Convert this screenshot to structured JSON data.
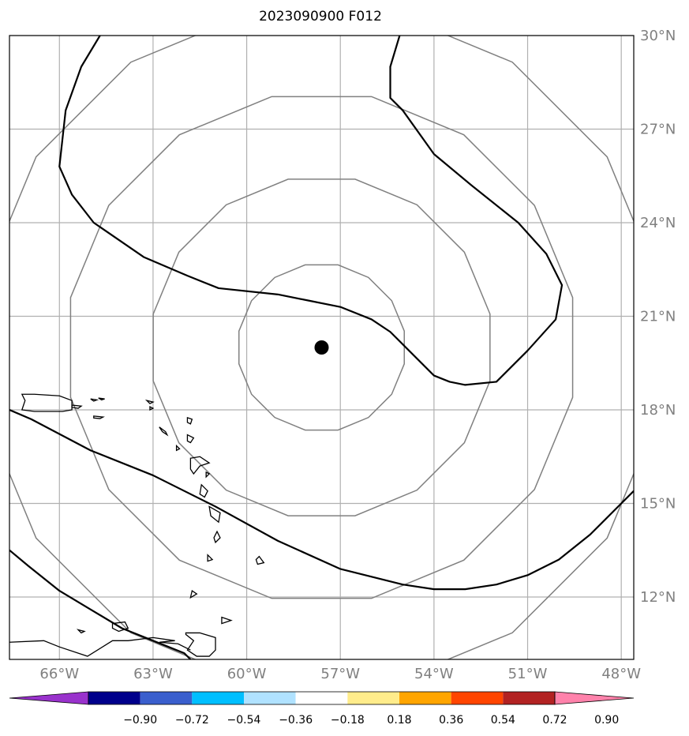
{
  "title": "2023090900 F012",
  "map": {
    "extent": {
      "lon_min": -67.6,
      "lon_max": -47.6,
      "lat_min": 10.0,
      "lat_max": 30.0
    },
    "lon_ticks": [
      {
        "lon": -66,
        "label": "66°W"
      },
      {
        "lon": -63,
        "label": "63°W"
      },
      {
        "lon": -60,
        "label": "60°W"
      },
      {
        "lon": -57,
        "label": "57°W"
      },
      {
        "lon": -54,
        "label": "54°W"
      },
      {
        "lon": -51,
        "label": "51°W"
      },
      {
        "lon": -48,
        "label": "48°W"
      }
    ],
    "lat_ticks": [
      {
        "lat": 30,
        "label": "30°N"
      },
      {
        "lat": 27,
        "label": "27°N"
      },
      {
        "lat": 24,
        "label": "24°N"
      },
      {
        "lat": 21,
        "label": "21°N"
      },
      {
        "lat": 18,
        "label": "18°N"
      },
      {
        "lat": 15,
        "label": "15°N"
      },
      {
        "lat": 12,
        "label": "12°N"
      }
    ],
    "gridlines": true,
    "storm_center": {
      "lon": -57.6,
      "lat": 20.0
    },
    "range_rings_deg": [
      2.7,
      5.5,
      8.2,
      11.0
    ],
    "contours": [
      {
        "name": "contour-north",
        "points": [
          [
            -64.7,
            30
          ],
          [
            -65.3,
            29
          ],
          [
            -65.8,
            27.6
          ],
          [
            -66.0,
            25.8
          ],
          [
            -65.6,
            24.9
          ],
          [
            -64.9,
            24.0
          ],
          [
            -63.3,
            22.9
          ],
          [
            -61.9,
            22.3
          ],
          [
            -60.9,
            21.9
          ],
          [
            -59.0,
            21.7
          ],
          [
            -58.0,
            21.5
          ],
          [
            -57.0,
            21.3
          ],
          [
            -56.0,
            20.9
          ],
          [
            -55.4,
            20.5
          ],
          [
            -55.0,
            20.1
          ],
          [
            -54.0,
            19.1
          ],
          [
            -53.5,
            18.9
          ],
          [
            -53.0,
            18.8
          ],
          [
            -52.0,
            18.9
          ],
          [
            -51.0,
            19.9
          ],
          [
            -50.1,
            20.9
          ],
          [
            -49.9,
            22.0
          ],
          [
            -50.4,
            23.0
          ],
          [
            -51.3,
            24.0
          ],
          [
            -52.8,
            25.2
          ],
          [
            -54.0,
            26.2
          ],
          [
            -55.0,
            27.6
          ],
          [
            -55.4,
            28.0
          ],
          [
            -55.4,
            29.0
          ],
          [
            -55.1,
            30.0
          ]
        ]
      },
      {
        "name": "contour-south-1",
        "points": [
          [
            -67.6,
            18.0
          ],
          [
            -66.9,
            17.7
          ],
          [
            -65.0,
            16.7
          ],
          [
            -63.0,
            15.9
          ],
          [
            -61.0,
            14.9
          ],
          [
            -59.0,
            13.8
          ],
          [
            -57.0,
            12.9
          ],
          [
            -55.0,
            12.4
          ],
          [
            -54.0,
            12.25
          ],
          [
            -53.0,
            12.25
          ],
          [
            -52.0,
            12.4
          ],
          [
            -51.0,
            12.7
          ],
          [
            -50.0,
            13.2
          ],
          [
            -49.0,
            14.0
          ],
          [
            -48.0,
            15.0
          ],
          [
            -47.6,
            15.4
          ]
        ]
      },
      {
        "name": "contour-south-2",
        "points": [
          [
            -67.6,
            13.5
          ],
          [
            -67.0,
            13.0
          ],
          [
            -66.0,
            12.2
          ],
          [
            -65.0,
            11.6
          ],
          [
            -64.0,
            11.0
          ],
          [
            -63.0,
            10.6
          ],
          [
            -62.0,
            10.2
          ],
          [
            -61.8,
            10.0
          ]
        ]
      }
    ],
    "islands": [
      {
        "name": "puerto-rico",
        "points": [
          [
            -67.2,
            18.5
          ],
          [
            -67.1,
            18.3
          ],
          [
            -67.2,
            18.0
          ],
          [
            -66.8,
            17.95
          ],
          [
            -65.9,
            17.95
          ],
          [
            -65.6,
            18.0
          ],
          [
            -65.6,
            18.3
          ],
          [
            -66.0,
            18.45
          ],
          [
            -66.8,
            18.5
          ]
        ]
      },
      {
        "name": "vieques",
        "points": [
          [
            -65.6,
            18.15
          ],
          [
            -65.3,
            18.12
          ],
          [
            -65.4,
            18.05
          ],
          [
            -65.6,
            18.08
          ]
        ]
      },
      {
        "name": "virgin-islands-1",
        "points": [
          [
            -65.0,
            18.35
          ],
          [
            -64.8,
            18.32
          ],
          [
            -64.9,
            18.28
          ]
        ]
      },
      {
        "name": "virgin-islands-2",
        "points": [
          [
            -64.75,
            18.38
          ],
          [
            -64.55,
            18.35
          ],
          [
            -64.65,
            18.32
          ]
        ]
      },
      {
        "name": "st-croix",
        "points": [
          [
            -64.9,
            17.8
          ],
          [
            -64.6,
            17.77
          ],
          [
            -64.7,
            17.72
          ],
          [
            -64.9,
            17.74
          ]
        ]
      },
      {
        "name": "anguilla",
        "points": [
          [
            -63.2,
            18.3
          ],
          [
            -63.0,
            18.25
          ],
          [
            -63.1,
            18.2
          ]
        ]
      },
      {
        "name": "st-martin",
        "points": [
          [
            -63.1,
            18.1
          ],
          [
            -63.0,
            18.05
          ],
          [
            -63.1,
            18.0
          ]
        ]
      },
      {
        "name": "barbuda",
        "points": [
          [
            -61.9,
            17.75
          ],
          [
            -61.75,
            17.7
          ],
          [
            -61.8,
            17.55
          ],
          [
            -61.9,
            17.6
          ]
        ]
      },
      {
        "name": "antigua",
        "points": [
          [
            -61.9,
            17.2
          ],
          [
            -61.7,
            17.1
          ],
          [
            -61.8,
            16.95
          ],
          [
            -61.9,
            17.0
          ]
        ]
      },
      {
        "name": "st-kitts",
        "points": [
          [
            -62.8,
            17.45
          ],
          [
            -62.6,
            17.3
          ],
          [
            -62.55,
            17.2
          ],
          [
            -62.7,
            17.3
          ]
        ]
      },
      {
        "name": "montserrat",
        "points": [
          [
            -62.25,
            16.85
          ],
          [
            -62.15,
            16.75
          ],
          [
            -62.25,
            16.7
          ]
        ]
      },
      {
        "name": "guadeloupe",
        "points": [
          [
            -61.8,
            16.45
          ],
          [
            -61.5,
            16.5
          ],
          [
            -61.2,
            16.3
          ],
          [
            -61.5,
            16.2
          ],
          [
            -61.7,
            15.95
          ],
          [
            -61.8,
            16.1
          ]
        ]
      },
      {
        "name": "marie-galante",
        "points": [
          [
            -61.3,
            16.0
          ],
          [
            -61.2,
            15.95
          ],
          [
            -61.3,
            15.85
          ]
        ]
      },
      {
        "name": "dominica",
        "points": [
          [
            -61.45,
            15.6
          ],
          [
            -61.25,
            15.4
          ],
          [
            -61.35,
            15.2
          ],
          [
            -61.5,
            15.3
          ]
        ]
      },
      {
        "name": "martinique",
        "points": [
          [
            -61.2,
            14.9
          ],
          [
            -60.85,
            14.7
          ],
          [
            -60.9,
            14.4
          ],
          [
            -61.15,
            14.6
          ]
        ]
      },
      {
        "name": "st-lucia",
        "points": [
          [
            -60.95,
            14.1
          ],
          [
            -60.85,
            13.9
          ],
          [
            -61.0,
            13.75
          ],
          [
            -61.05,
            13.9
          ]
        ]
      },
      {
        "name": "st-vincent",
        "points": [
          [
            -61.25,
            13.35
          ],
          [
            -61.1,
            13.2
          ],
          [
            -61.25,
            13.15
          ]
        ]
      },
      {
        "name": "barbados",
        "points": [
          [
            -59.6,
            13.3
          ],
          [
            -59.45,
            13.1
          ],
          [
            -59.65,
            13.05
          ],
          [
            -59.7,
            13.2
          ]
        ]
      },
      {
        "name": "grenada",
        "points": [
          [
            -61.75,
            12.2
          ],
          [
            -61.6,
            12.1
          ],
          [
            -61.8,
            11.98
          ]
        ]
      },
      {
        "name": "tobago",
        "points": [
          [
            -60.8,
            11.35
          ],
          [
            -60.5,
            11.25
          ],
          [
            -60.8,
            11.15
          ]
        ]
      },
      {
        "name": "trinidad",
        "points": [
          [
            -61.95,
            10.85
          ],
          [
            -61.5,
            10.85
          ],
          [
            -61.0,
            10.7
          ],
          [
            -61.0,
            10.3
          ],
          [
            -61.2,
            10.1
          ],
          [
            -61.6,
            10.1
          ],
          [
            -61.9,
            10.3
          ],
          [
            -61.7,
            10.6
          ],
          [
            -61.95,
            10.8
          ]
        ]
      },
      {
        "name": "venezuela-coast",
        "points": [
          [
            -67.6,
            10.55
          ],
          [
            -66.5,
            10.6
          ],
          [
            -66.0,
            10.4
          ],
          [
            -65.1,
            10.1
          ],
          [
            -64.3,
            10.6
          ],
          [
            -63.8,
            10.6
          ],
          [
            -63.0,
            10.7
          ],
          [
            -62.3,
            10.6
          ],
          [
            -62.8,
            10.55
          ],
          [
            -62.2,
            10.5
          ],
          [
            -61.8,
            10.3
          ]
        ]
      },
      {
        "name": "margarita",
        "points": [
          [
            -64.3,
            11.15
          ],
          [
            -63.9,
            11.2
          ],
          [
            -63.8,
            11.0
          ],
          [
            -64.1,
            10.9
          ],
          [
            -64.3,
            11.0
          ]
        ]
      },
      {
        "name": "la-tortuga",
        "points": [
          [
            -65.4,
            10.95
          ],
          [
            -65.2,
            10.9
          ],
          [
            -65.3,
            10.85
          ]
        ]
      }
    ]
  },
  "colorbar": {
    "colors": [
      "#9932CC",
      "#00008B",
      "#3A5FCD",
      "#00BFFF",
      "#B0E2FF",
      "#FFFFFF",
      "#FFEC8B",
      "#FFA500",
      "#FF4500",
      "#B22222",
      "#FF82AB"
    ],
    "tick_labels": [
      "−0.90",
      "−0.72",
      "−0.54",
      "−0.36",
      "−0.18",
      "0.18",
      "0.36",
      "0.54",
      "0.72",
      "0.90"
    ]
  }
}
